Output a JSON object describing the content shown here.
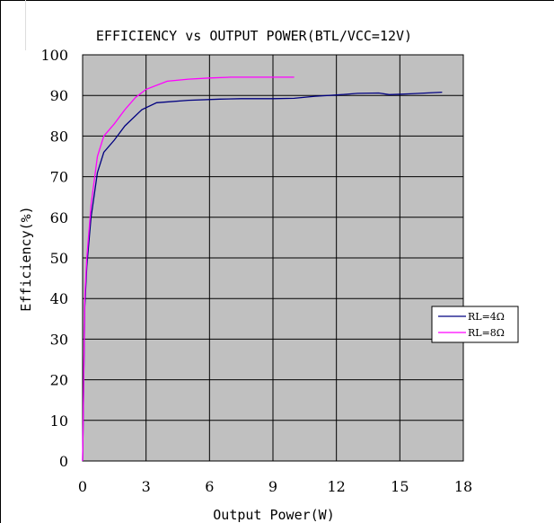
{
  "chart_data": {
    "type": "line",
    "title": "EFFICIENCY vs OUTPUT POWER(BTL/VCC=12V)",
    "xlabel": "Output Power(W)",
    "ylabel": "Efficiency(%)",
    "xlim": [
      0,
      18
    ],
    "ylim": [
      0,
      100
    ],
    "xticks": [
      0,
      3,
      6,
      9,
      12,
      15,
      18
    ],
    "yticks": [
      0,
      10,
      20,
      30,
      40,
      50,
      60,
      70,
      80,
      90,
      100
    ],
    "grid": true,
    "legend_position": "right",
    "plot_background": "#c0c0c0",
    "series": [
      {
        "name": "RL=4Ω",
        "color": "#000080",
        "x": [
          0,
          0.1,
          0.2,
          0.4,
          0.7,
          1.0,
          1.5,
          2.0,
          2.8,
          3.5,
          5.0,
          6.5,
          7.5,
          9.0,
          10.0,
          11.0,
          12.0,
          13.0,
          14.0,
          14.5,
          15.5,
          17.0
        ],
        "y": [
          0,
          38,
          48,
          60,
          71,
          76,
          79,
          82.5,
          86.5,
          88.2,
          88.8,
          89.1,
          89.2,
          89.2,
          89.3,
          89.8,
          90.1,
          90.5,
          90.6,
          90.2,
          90.4,
          90.8
        ]
      },
      {
        "name": "RL=8Ω",
        "color": "#ff00ff",
        "x": [
          0,
          0.1,
          0.2,
          0.4,
          0.7,
          1.0,
          1.5,
          2.0,
          2.5,
          3.0,
          4.0,
          5.0,
          6.0,
          7.0,
          8.0,
          9.0,
          10.0
        ],
        "y": [
          0,
          40,
          50,
          63,
          75,
          80,
          83,
          86.5,
          89.5,
          91.5,
          93.5,
          94.0,
          94.3,
          94.5,
          94.5,
          94.5,
          94.5
        ]
      }
    ]
  }
}
